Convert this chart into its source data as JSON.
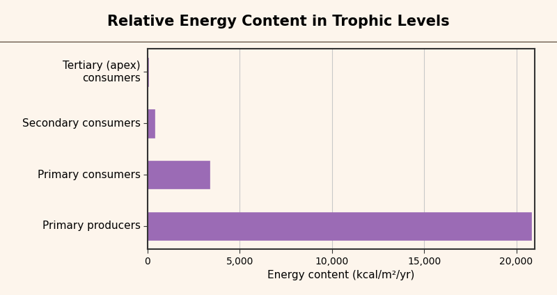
{
  "categories": [
    "Primary producers",
    "Primary consumers",
    "Secondary consumers",
    "Tertiary (apex)\nconsumers"
  ],
  "values": [
    20810,
    3368,
    383,
    21
  ],
  "bar_color": "#9b6bb5",
  "title": "Relative Energy Content in Trophic Levels",
  "xlabel": "Energy content (kcal/m²/yr)",
  "xlim": [
    0,
    21000
  ],
  "xticks": [
    0,
    5000,
    10000,
    15000,
    20000
  ],
  "xticklabels": [
    "0",
    "5,000",
    "10,000",
    "15,000",
    "20,000"
  ],
  "title_fontsize": 15,
  "label_fontsize": 11,
  "tick_fontsize": 10,
  "title_bg_color": "#F5A86E",
  "title_text_color": "#000000",
  "plot_bg_color": "#FDF5EC",
  "outer_bg_color": "#FDF5EC",
  "figure_border_color": "#5a4a3a",
  "bar_height": 0.55,
  "grid_color": "#C8C8C8",
  "spine_color": "#333333"
}
